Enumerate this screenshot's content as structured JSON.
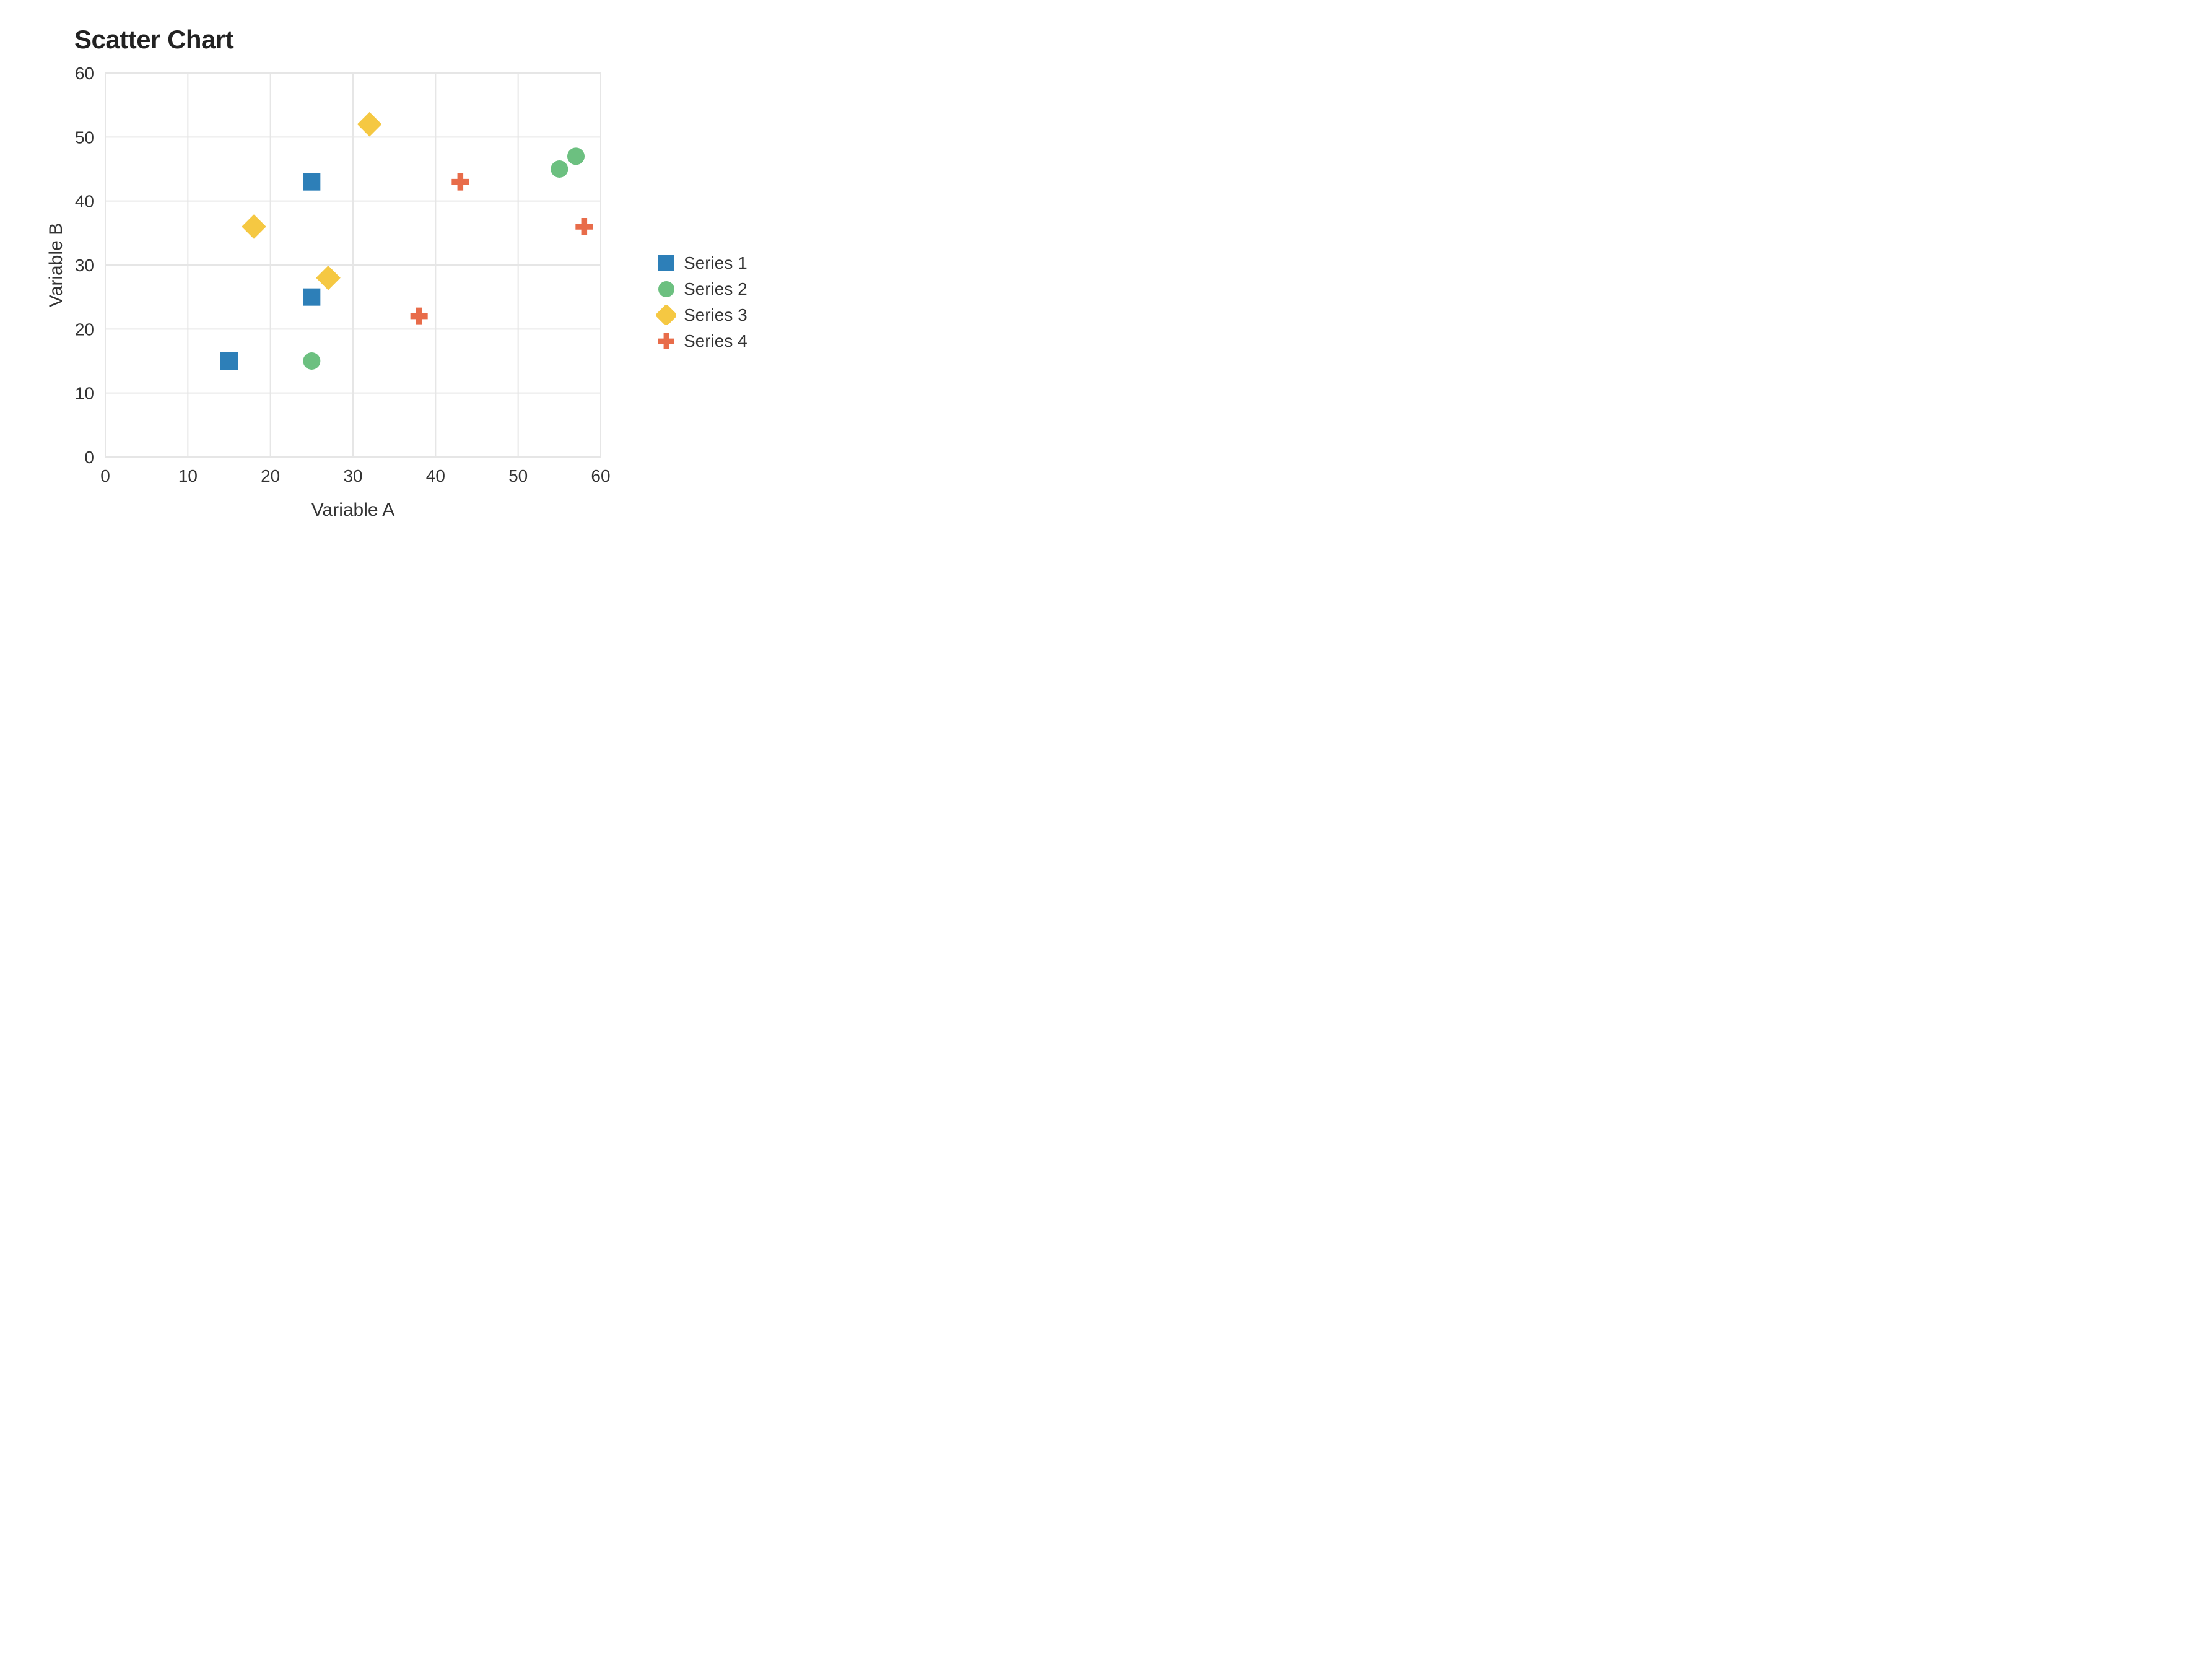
{
  "chart": {
    "type": "scatter",
    "title": "Scatter Chart",
    "title_fontsize": 42,
    "title_fontweight": 700,
    "xlabel": "Variable A",
    "ylabel": "Variable B",
    "axis_label_fontsize": 30,
    "tick_fontsize": 28,
    "xlim": [
      0,
      60
    ],
    "ylim": [
      0,
      60
    ],
    "xtick_step": 10,
    "ytick_step": 10,
    "background_color": "#ffffff",
    "grid_color": "#e6e6e6",
    "grid_stroke_width": 2,
    "marker_size": 28,
    "series": [
      {
        "name": "Series 1",
        "marker": "square",
        "color": "#2d7fb8",
        "points": [
          {
            "x": 15,
            "y": 15
          },
          {
            "x": 25,
            "y": 25
          },
          {
            "x": 25,
            "y": 43
          }
        ]
      },
      {
        "name": "Series 2",
        "marker": "circle",
        "color": "#6cc080",
        "points": [
          {
            "x": 25,
            "y": 15
          },
          {
            "x": 55,
            "y": 45
          },
          {
            "x": 57,
            "y": 47
          }
        ]
      },
      {
        "name": "Series 3",
        "marker": "diamond",
        "color": "#f5c842",
        "points": [
          {
            "x": 18,
            "y": 36
          },
          {
            "x": 27,
            "y": 28
          },
          {
            "x": 32,
            "y": 52
          }
        ]
      },
      {
        "name": "Series 4",
        "marker": "cross",
        "color": "#e86c4a",
        "points": [
          {
            "x": 38,
            "y": 22
          },
          {
            "x": 43,
            "y": 43
          },
          {
            "x": 58,
            "y": 36
          }
        ]
      }
    ]
  },
  "legend": {
    "items": [
      {
        "label": "Series 1"
      },
      {
        "label": "Series 2"
      },
      {
        "label": "Series 3"
      },
      {
        "label": "Series 4"
      }
    ]
  }
}
